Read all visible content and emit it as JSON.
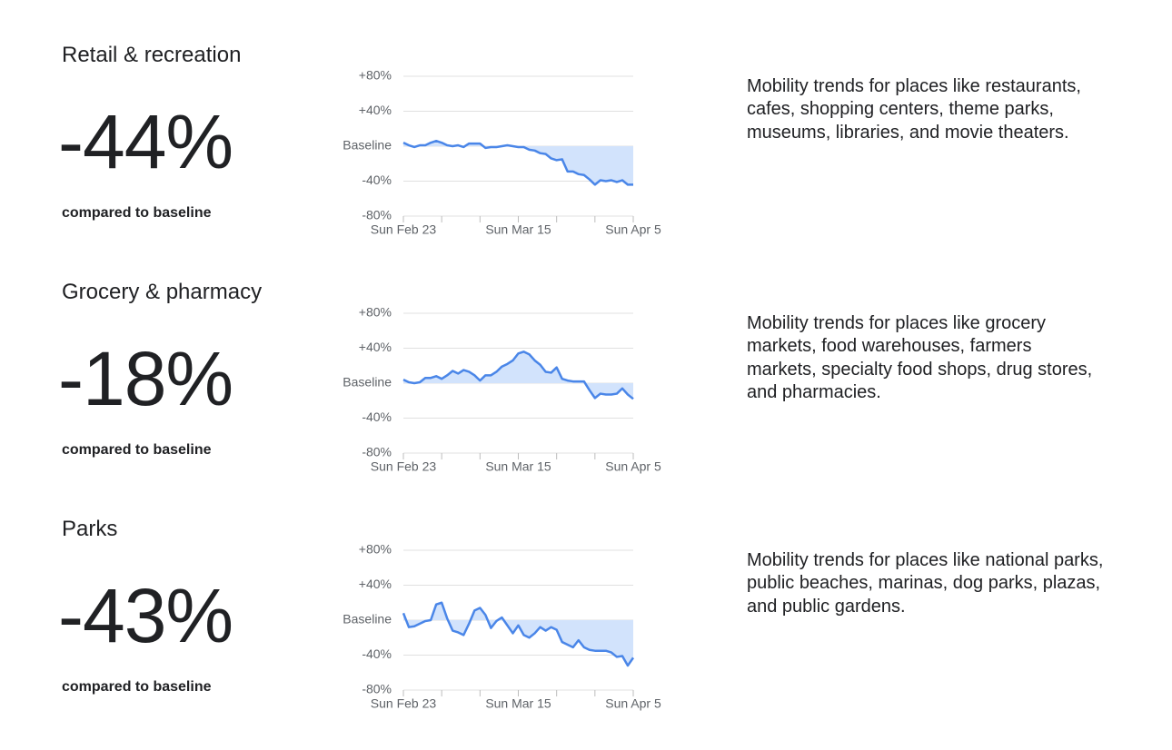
{
  "sections": [
    {
      "title": "Retail & recreation",
      "headline": "-44%",
      "caption": "compared to baseline",
      "description": [
        "Mobility trends for places like restaurants,",
        "cafes, shopping centers, theme parks,",
        "museums, libraries, and movie theaters."
      ]
    },
    {
      "title": "Grocery & pharmacy",
      "headline": "-18%",
      "caption": "compared to baseline",
      "description": [
        "Mobility trends for places like grocery",
        "markets, food warehouses, farmers",
        "markets, specialty food shops, drug stores,",
        "and pharmacies."
      ]
    },
    {
      "title": "Parks",
      "headline": "-43%",
      "caption": "compared to baseline",
      "description": [
        "Mobility trends for places like national parks,",
        "public beaches, marinas, dog parks, plazas,",
        "and public gardens."
      ]
    }
  ],
  "chart_data": [
    {
      "type": "line",
      "color": "#4a86e8",
      "fill_color": "#d2e3fc",
      "grid": true,
      "categories": [
        "Sun Feb 23",
        null,
        null,
        null,
        null,
        null,
        null,
        null,
        null,
        null,
        null,
        null,
        null,
        null,
        null,
        null,
        null,
        null,
        null,
        null,
        null,
        "Sun Mar 15",
        null,
        null,
        null,
        null,
        null,
        null,
        null,
        null,
        null,
        null,
        null,
        null,
        null,
        null,
        null,
        null,
        null,
        null,
        null,
        null,
        "Sun Apr 5"
      ],
      "values": [
        4,
        1,
        -1,
        1,
        1,
        4,
        6,
        4,
        1,
        0,
        1,
        -1,
        3,
        3,
        3,
        -2,
        -1,
        -1,
        0,
        1,
        0,
        -1,
        -1,
        -4,
        -5,
        -8,
        -9,
        -14,
        -16,
        -15,
        -29,
        -29,
        -32,
        -33,
        -38,
        -44,
        -39,
        -40,
        -39,
        -41,
        -39,
        -44,
        -44
      ],
      "ylim": [
        -80,
        80
      ],
      "yticks": [
        {
          "value": 80,
          "label": "+80%"
        },
        {
          "value": 40,
          "label": "+40%"
        },
        {
          "value": 0,
          "label": "Baseline"
        },
        {
          "value": -40,
          "label": "-40%"
        },
        {
          "value": -80,
          "label": "-80%"
        }
      ]
    },
    {
      "type": "line",
      "color": "#4a86e8",
      "fill_color": "#d2e3fc",
      "grid": true,
      "categories": [
        "Sun Feb 23",
        null,
        null,
        null,
        null,
        null,
        null,
        null,
        null,
        null,
        null,
        null,
        null,
        null,
        null,
        null,
        null,
        null,
        null,
        null,
        null,
        "Sun Mar 15",
        null,
        null,
        null,
        null,
        null,
        null,
        null,
        null,
        null,
        null,
        null,
        null,
        null,
        null,
        null,
        null,
        null,
        null,
        null,
        null,
        "Sun Apr 5"
      ],
      "values": [
        4,
        1,
        0,
        1,
        6,
        6,
        8,
        5,
        9,
        14,
        11,
        15,
        13,
        9,
        3,
        9,
        9,
        13,
        19,
        22,
        26,
        34,
        36,
        33,
        26,
        21,
        13,
        12,
        18,
        5,
        3,
        2,
        2,
        2,
        -8,
        -17,
        -12,
        -13,
        -13,
        -12,
        -6,
        -13,
        -18
      ],
      "ylim": [
        -80,
        80
      ],
      "yticks": [
        {
          "value": 80,
          "label": "+80%"
        },
        {
          "value": 40,
          "label": "+40%"
        },
        {
          "value": 0,
          "label": "Baseline"
        },
        {
          "value": -40,
          "label": "-40%"
        },
        {
          "value": -80,
          "label": "-80%"
        }
      ]
    },
    {
      "type": "line",
      "color": "#4a86e8",
      "fill_color": "#d2e3fc",
      "grid": true,
      "categories": [
        "Sun Feb 23",
        null,
        null,
        null,
        null,
        null,
        null,
        null,
        null,
        null,
        null,
        null,
        null,
        null,
        null,
        null,
        null,
        null,
        null,
        null,
        null,
        "Sun Mar 15",
        null,
        null,
        null,
        null,
        null,
        null,
        null,
        null,
        null,
        null,
        null,
        null,
        null,
        null,
        null,
        null,
        null,
        null,
        null,
        null,
        "Sun Apr 5"
      ],
      "values": [
        8,
        -8,
        -7,
        -4,
        -1,
        0,
        18,
        20,
        2,
        -12,
        -14,
        -17,
        -4,
        11,
        14,
        6,
        -9,
        -1,
        3,
        -6,
        -15,
        -6,
        -17,
        -20,
        -15,
        -8,
        -12,
        -8,
        -11,
        -25,
        -28,
        -31,
        -23,
        -31,
        -34,
        -35,
        -35,
        -35,
        -37,
        -42,
        -41,
        -52,
        -43
      ],
      "ylim": [
        -80,
        80
      ],
      "yticks": [
        {
          "value": 80,
          "label": "+80%"
        },
        {
          "value": 40,
          "label": "+40%"
        },
        {
          "value": 0,
          "label": "Baseline"
        },
        {
          "value": -40,
          "label": "-40%"
        },
        {
          "value": -80,
          "label": "-80%"
        }
      ]
    }
  ]
}
